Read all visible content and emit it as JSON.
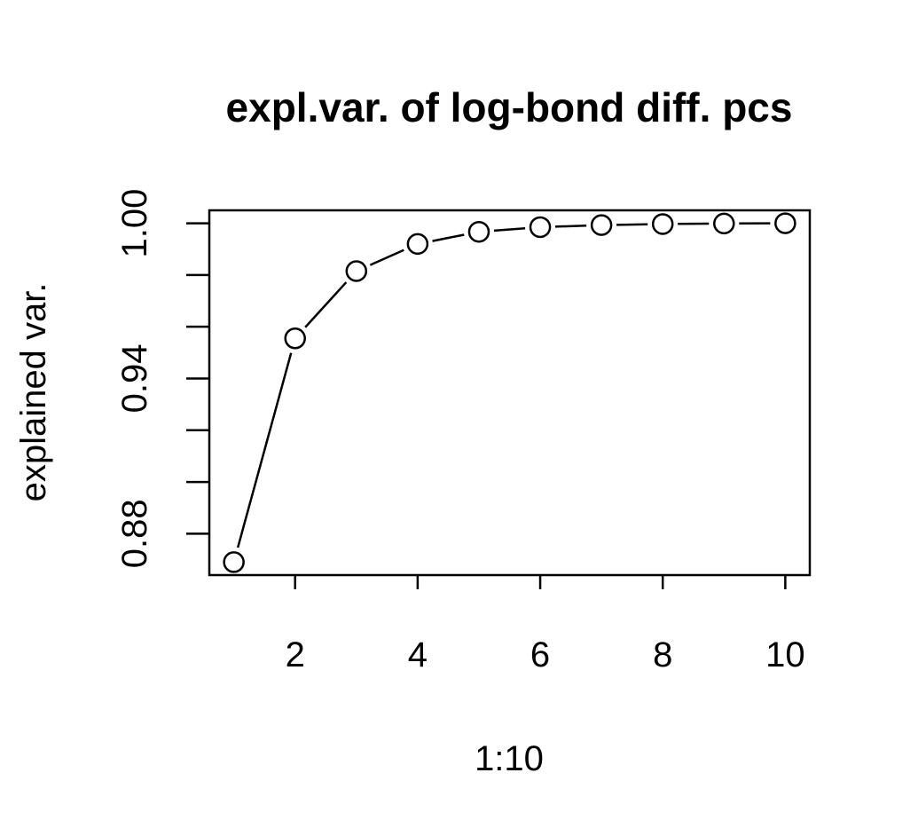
{
  "chart_data": {
    "type": "line",
    "title": "expl.var. of log-bond diff. pcs",
    "xlabel": "1:10",
    "ylabel": "explained var.",
    "x": [
      1,
      2,
      3,
      4,
      5,
      6,
      7,
      8,
      9,
      10
    ],
    "series": [
      {
        "values": [
          0.869,
          0.9555,
          0.9815,
          0.992,
          0.9967,
          0.9985,
          0.9993,
          0.9997,
          0.9999,
          1.0
        ]
      }
    ],
    "xlim": [
      0.6,
      10.4
    ],
    "ylim": [
      0.864,
      1.005
    ],
    "xticks": [
      2,
      4,
      6,
      8,
      10
    ],
    "xtick_labels": [
      "2",
      "4",
      "6",
      "8",
      "10"
    ],
    "yticks": [
      0.88,
      0.9,
      0.92,
      0.94,
      0.96,
      0.98,
      1.0
    ],
    "ytick_labels": [
      "0.88",
      "",
      "",
      "0.94",
      "",
      "",
      "1.00"
    ],
    "marker": "open-circle",
    "line_style": "both",
    "grid": false,
    "colors": {
      "line": "#000000",
      "background": "#ffffff"
    }
  }
}
